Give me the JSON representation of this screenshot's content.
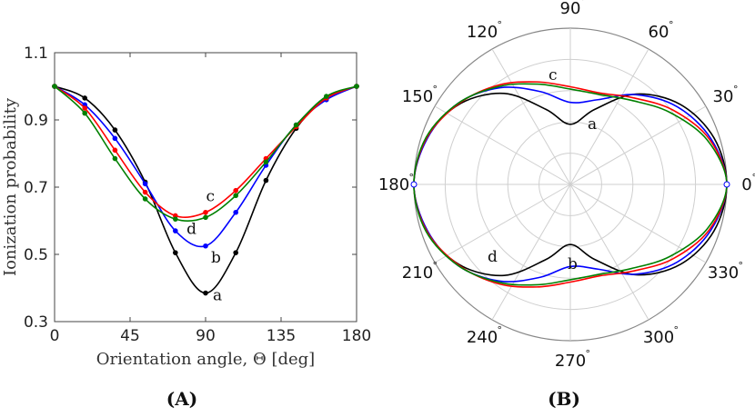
{
  "panel_labels": [
    "(A)",
    "(B)"
  ],
  "chart_data": [
    {
      "type": "line",
      "xlabel": "Orientation angle, Θ [deg]",
      "ylabel": "Ionization probability",
      "xlim": [
        0,
        180
      ],
      "ylim": [
        0.3,
        1.1
      ],
      "xticks": [
        "0",
        "45",
        "90",
        "135",
        "180"
      ],
      "yticks": [
        "0.3",
        "0.5",
        "0.7",
        "0.9",
        "1.1"
      ],
      "grid": false,
      "series": [
        {
          "name": "a",
          "color": "#000000",
          "x": [
            0,
            18,
            36,
            54,
            72,
            90,
            108,
            126,
            144,
            162,
            180
          ],
          "values": [
            1.0,
            0.965,
            0.87,
            0.715,
            0.505,
            0.385,
            0.505,
            0.72,
            0.875,
            0.965,
            1.0
          ]
        },
        {
          "name": "b",
          "color": "#0000ff",
          "x": [
            0,
            18,
            36,
            54,
            72,
            90,
            108,
            126,
            144,
            162,
            180
          ],
          "values": [
            1.0,
            0.945,
            0.845,
            0.71,
            0.57,
            0.525,
            0.625,
            0.765,
            0.885,
            0.96,
            1.0
          ]
        },
        {
          "name": "c",
          "color": "#ff0000",
          "x": [
            0,
            18,
            36,
            54,
            72,
            90,
            108,
            126,
            144,
            162,
            180
          ],
          "values": [
            1.0,
            0.935,
            0.81,
            0.685,
            0.615,
            0.625,
            0.69,
            0.785,
            0.88,
            0.965,
            1.0
          ]
        },
        {
          "name": "d",
          "color": "#008000",
          "x": [
            0,
            18,
            36,
            54,
            72,
            90,
            108,
            126,
            144,
            162,
            180
          ],
          "values": [
            1.0,
            0.92,
            0.785,
            0.665,
            0.605,
            0.61,
            0.675,
            0.775,
            0.885,
            0.97,
            1.0
          ]
        }
      ]
    },
    {
      "type": "line",
      "projection": "polar",
      "angle_ticks": [
        "0",
        "30",
        "60",
        "90",
        "120",
        "150",
        "180",
        "210",
        "240",
        "270",
        "300",
        "330"
      ],
      "rlim": [
        0,
        1.0
      ],
      "grid": true,
      "series": [
        {
          "name": "a",
          "color": "#000000",
          "theta": [
            0,
            18,
            36,
            54,
            72,
            90,
            108,
            126,
            144,
            162,
            180
          ],
          "r": [
            1.0,
            0.965,
            0.87,
            0.715,
            0.505,
            0.385,
            0.505,
            0.72,
            0.875,
            0.965,
            1.0
          ]
        },
        {
          "name": "b",
          "color": "#0000ff",
          "theta": [
            0,
            18,
            36,
            54,
            72,
            90,
            108,
            126,
            144,
            162,
            180
          ],
          "r": [
            1.0,
            0.945,
            0.845,
            0.71,
            0.57,
            0.525,
            0.625,
            0.765,
            0.885,
            0.96,
            1.0
          ]
        },
        {
          "name": "c",
          "color": "#ff0000",
          "theta": [
            0,
            18,
            36,
            54,
            72,
            90,
            108,
            126,
            144,
            162,
            180
          ],
          "r": [
            1.0,
            0.935,
            0.81,
            0.685,
            0.615,
            0.625,
            0.69,
            0.785,
            0.88,
            0.965,
            1.0
          ]
        },
        {
          "name": "d",
          "color": "#008000",
          "theta": [
            0,
            18,
            36,
            54,
            72,
            90,
            108,
            126,
            144,
            162,
            180
          ],
          "r": [
            1.0,
            0.92,
            0.785,
            0.665,
            0.605,
            0.61,
            0.675,
            0.775,
            0.885,
            0.97,
            1.0
          ]
        }
      ]
    }
  ]
}
